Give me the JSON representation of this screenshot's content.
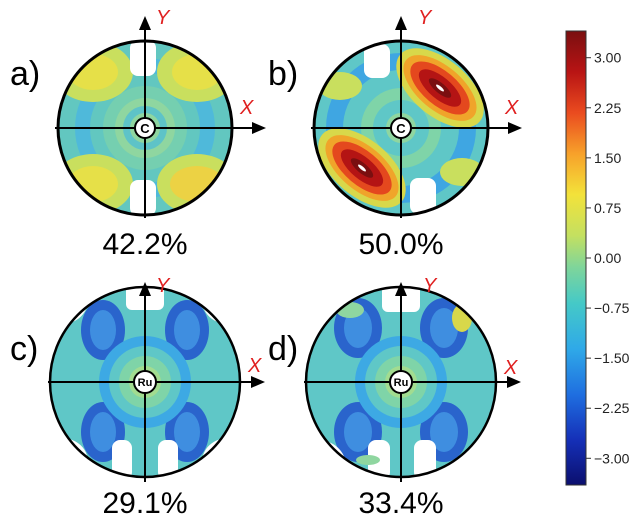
{
  "panels": [
    {
      "id": "a",
      "label": "a)",
      "center": "C",
      "percent": "42.2%",
      "x_axis": "X",
      "y_axis": "Y"
    },
    {
      "id": "b",
      "label": "b)",
      "center": "C",
      "percent": "50.0%",
      "x_axis": "X",
      "y_axis": "Y"
    },
    {
      "id": "c",
      "label": "c)",
      "center": "Ru",
      "percent": "29.1%",
      "x_axis": "X",
      "y_axis": "Y"
    },
    {
      "id": "d",
      "label": "d)",
      "center": "Ru",
      "percent": "33.4%",
      "x_axis": "X",
      "y_axis": "Y"
    }
  ],
  "colorbar": {
    "min": -3.4,
    "max": 3.4,
    "ticks": [
      "3.00",
      "2.25",
      "1.50",
      "0.75",
      "0.00",
      "−0.75",
      "−1.50",
      "−2.25",
      "−3.00"
    ],
    "colors": [
      "#0b0f6e",
      "#1530b8",
      "#1f6fe0",
      "#2fa9e8",
      "#45c9c7",
      "#7fd59a",
      "#c4e060",
      "#f3e23a",
      "#f7a12a",
      "#ea4b1f",
      "#b81414",
      "#7a0f10"
    ]
  },
  "colors": {
    "axis_label": "#e02020",
    "background_teal": "#5fc7c7",
    "dark_blue": "#2457c9",
    "light_blue": "#45b8e8",
    "green": "#88d4a4",
    "yellow": "#e8e048",
    "red": "#c42020"
  }
}
